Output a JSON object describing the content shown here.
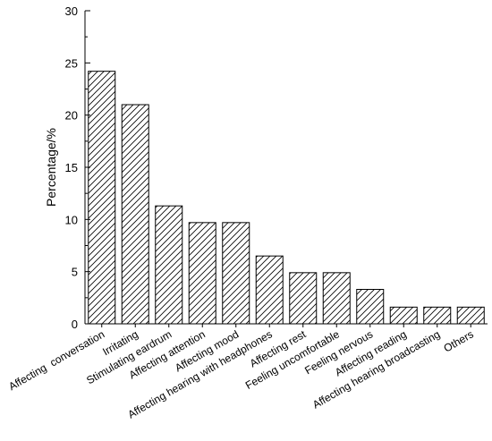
{
  "chart_data": {
    "type": "bar",
    "title": "",
    "xlabel": "",
    "ylabel": "Percentage/%",
    "ylim": [
      0,
      30
    ],
    "yticks": [
      0,
      5,
      10,
      15,
      20,
      25,
      30
    ],
    "y_minor_step": 2.5,
    "grid": false,
    "bar_fill": "hatched",
    "bar_color": "#000000",
    "categories": [
      "Affecting  conversation",
      "Irritating",
      "Stimulating eardrum",
      "Affecting attention",
      "Affecting mood",
      "Affecting hearing with headphones",
      "Affecting rest",
      "Feeling uncomfortable",
      "Feeling nervous",
      "Affecting reading",
      "Affecting hearing broadcasting",
      "Others"
    ],
    "values": [
      24.2,
      21.0,
      11.3,
      9.7,
      9.7,
      6.5,
      4.9,
      4.9,
      3.3,
      1.6,
      1.6,
      1.6
    ]
  }
}
